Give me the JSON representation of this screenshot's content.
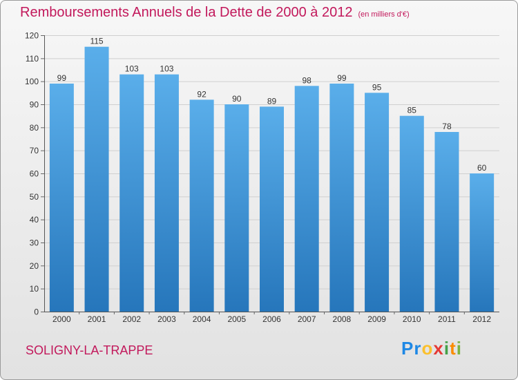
{
  "chart_data": {
    "type": "bar",
    "title": "Remboursements Annuels de la Dette de 2000 à 2012",
    "unit_note": "(en milliers d'€)",
    "categories": [
      "2000",
      "2001",
      "2002",
      "2003",
      "2004",
      "2005",
      "2006",
      "2007",
      "2008",
      "2009",
      "2010",
      "2011",
      "2012"
    ],
    "values": [
      99,
      115,
      103,
      103,
      92,
      90,
      89,
      98,
      99,
      95,
      85,
      78,
      60
    ],
    "ylim": [
      0,
      120
    ],
    "yticks": [
      0,
      10,
      20,
      30,
      40,
      50,
      60,
      70,
      80,
      90,
      100,
      110,
      120
    ],
    "grid": true,
    "xlabel": "",
    "ylabel": ""
  },
  "commune": "SOLIGNY-LA-TRAPPE",
  "logo": {
    "letters": [
      "P",
      "r",
      "o",
      "x",
      "i",
      "t",
      "i"
    ],
    "colors": [
      "#1e88e5",
      "#1e88e5",
      "#fbc02d",
      "#e53935",
      "#43a047",
      "#fb8c00",
      "#7cb342"
    ]
  },
  "colors": {
    "accent": "#c2185b",
    "bar_top": "#5aaeea",
    "bar_bottom": "#2676bb"
  }
}
